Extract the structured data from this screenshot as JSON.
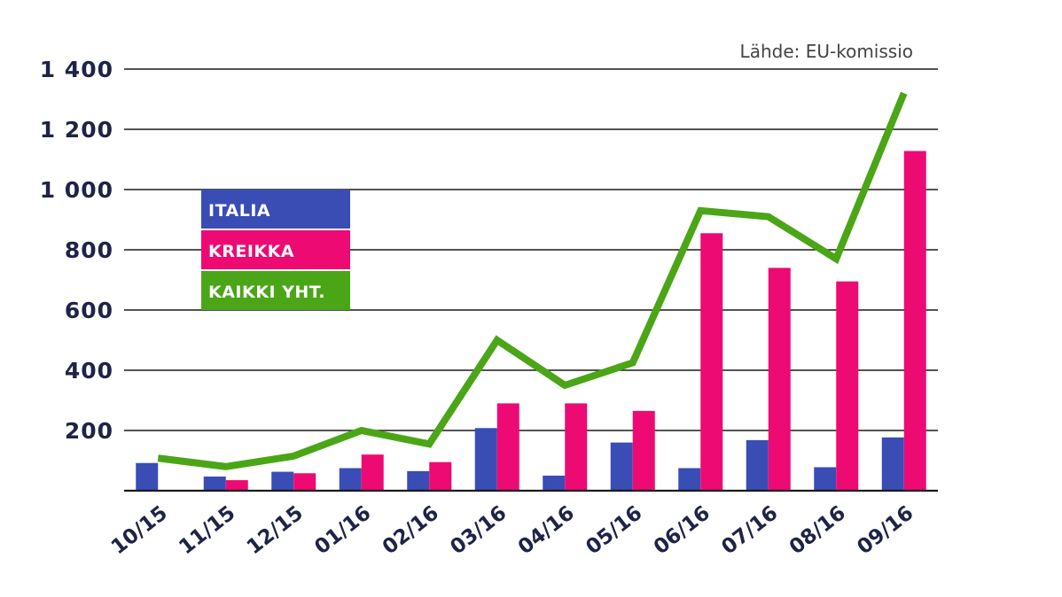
{
  "chart_data": {
    "type": "bar",
    "source": "Lähde: EU-komissio",
    "categories": [
      "10/15",
      "11/15",
      "12/15",
      "01/16",
      "02/16",
      "03/16",
      "04/16",
      "05/16",
      "06/16",
      "07/16",
      "08/16",
      "09/16"
    ],
    "ylim": [
      0,
      1400
    ],
    "yticks": [
      200,
      400,
      600,
      800,
      1000,
      1200,
      1400
    ],
    "ytick_labels": [
      "200",
      "400",
      "600",
      "800",
      "1 000",
      "1 200",
      "1 400"
    ],
    "grid": true,
    "legend_position": "upper-left",
    "series": [
      {
        "name": "ITALIA",
        "type": "bar",
        "color": "#3a4db5",
        "values": [
          92,
          47,
          63,
          75,
          65,
          208,
          50,
          160,
          75,
          168,
          78,
          177
        ]
      },
      {
        "name": "KREIKKA",
        "type": "bar",
        "color": "#ee0a73",
        "values": [
          0,
          35,
          58,
          120,
          95,
          290,
          290,
          265,
          855,
          740,
          695,
          1128
        ]
      },
      {
        "name": "KAIKKI YHT.",
        "type": "line",
        "color": "#4aa617",
        "values": [
          108,
          80,
          115,
          200,
          155,
          500,
          350,
          425,
          930,
          910,
          770,
          1320
        ]
      }
    ]
  }
}
